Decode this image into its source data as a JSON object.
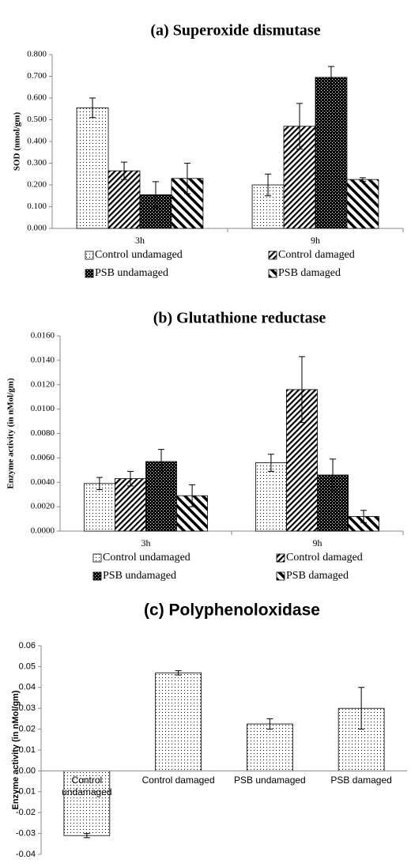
{
  "chart_data": [
    {
      "type": "grouped-bar",
      "title": "(a)  Superoxide dismutase",
      "y_label": "SOD (nmol/gm)",
      "categories": [
        "3h",
        "9h"
      ],
      "series": [
        {
          "name": "Control undamaged",
          "pattern": "dots",
          "values": [
            0.555,
            0.2
          ],
          "errors": [
            0.045,
            0.05
          ]
        },
        {
          "name": "Control damaged",
          "pattern": "diag-dense",
          "values": [
            0.265,
            0.47
          ],
          "errors": [
            0.04,
            0.105
          ]
        },
        {
          "name": "PSB undamaged",
          "pattern": "checker",
          "values": [
            0.155,
            0.695
          ],
          "errors": [
            0.06,
            0.05
          ]
        },
        {
          "name": "PSB damaged",
          "pattern": "diag-wide",
          "values": [
            0.23,
            0.225
          ],
          "errors": [
            0.07,
            0.008
          ]
        }
      ],
      "ylim": [
        0,
        0.8
      ],
      "yticks": [
        {
          "value": 0,
          "label": "0.000"
        },
        {
          "value": 0.1,
          "label": "0.100"
        },
        {
          "value": 0.2,
          "label": "0.200"
        },
        {
          "value": 0.3,
          "label": "0.300"
        },
        {
          "value": 0.4,
          "label": "0.400"
        },
        {
          "value": 0.5,
          "label": "0.500"
        },
        {
          "value": 0.6,
          "label": "0.600"
        },
        {
          "value": 0.7,
          "label": "0.700"
        },
        {
          "value": 0.8,
          "label": "0.800"
        }
      ]
    },
    {
      "type": "grouped-bar",
      "title": "(b)  Glutathione reductase",
      "y_label": "Enzyme  activity  (in nMol/gm)",
      "categories": [
        "3h",
        "9h"
      ],
      "series": [
        {
          "name": "Control undamaged",
          "pattern": "dots",
          "values": [
            0.0039,
            0.0056
          ],
          "errors": [
            0.0005,
            0.0007
          ]
        },
        {
          "name": "Control damaged",
          "pattern": "diag-dense",
          "values": [
            0.0043,
            0.0116
          ],
          "errors": [
            0.0006,
            0.0027
          ]
        },
        {
          "name": "PSB undamaged",
          "pattern": "checker",
          "values": [
            0.0057,
            0.0046
          ],
          "errors": [
            0.001,
            0.0013
          ]
        },
        {
          "name": "PSB damaged",
          "pattern": "diag-wide",
          "values": [
            0.0029,
            0.0012
          ],
          "errors": [
            0.0009,
            0.0005
          ]
        }
      ],
      "ylim": [
        0,
        0.016
      ],
      "yticks": [
        {
          "value": 0,
          "label": "0.0000"
        },
        {
          "value": 0.002,
          "label": "0.0020"
        },
        {
          "value": 0.004,
          "label": "0.0040"
        },
        {
          "value": 0.006,
          "label": "0.0060"
        },
        {
          "value": 0.008,
          "label": "0.0080"
        },
        {
          "value": 0.01,
          "label": "0.0100"
        },
        {
          "value": 0.012,
          "label": "0.0120"
        },
        {
          "value": 0.014,
          "label": "0.0140"
        },
        {
          "value": 0.016,
          "label": "0.0160"
        }
      ]
    },
    {
      "type": "bar",
      "title": "(c) Polyphenoloxidase",
      "y_label": "Enzyme activity (in nMol/gm)",
      "categories": [
        "Control undamaged",
        "Control damaged",
        "PSB undamaged",
        "PSB damaged"
      ],
      "pattern": "dots",
      "values": [
        -0.031,
        0.047,
        0.0225,
        0.03
      ],
      "errors": [
        0.001,
        0.001,
        0.0025,
        0.01
      ],
      "ylim": [
        -0.04,
        0.06
      ],
      "yticks": [
        -0.04,
        -0.03,
        -0.02,
        -0.01,
        {
          "value": 0,
          "label": "0.00"
        },
        0.01,
        0.02,
        0.03,
        0.04,
        0.05,
        0.06
      ]
    }
  ]
}
